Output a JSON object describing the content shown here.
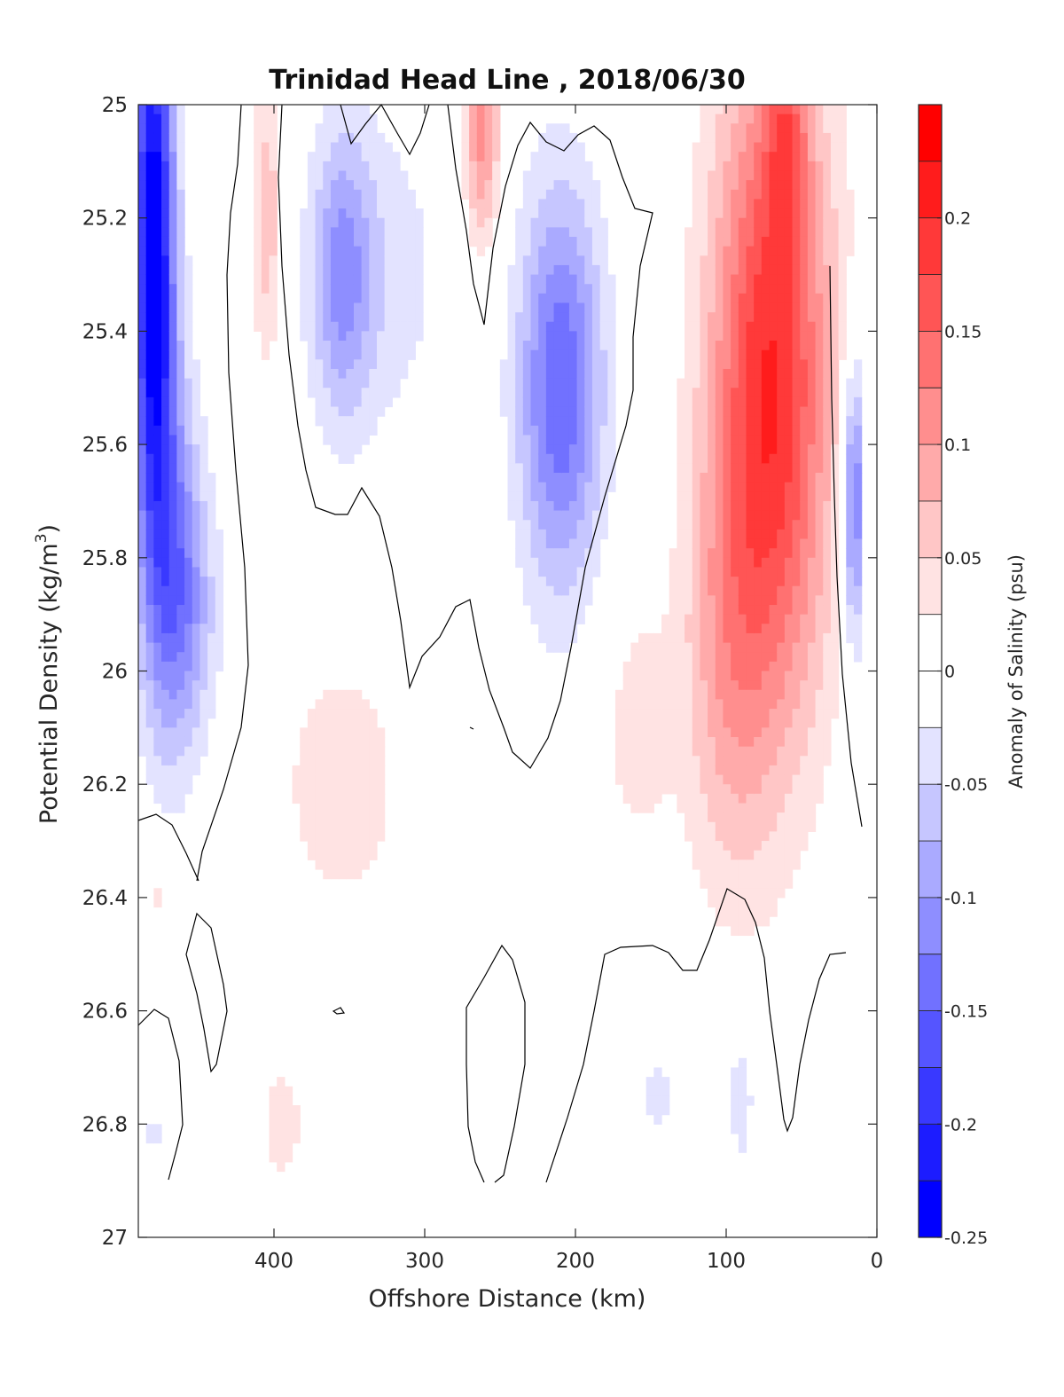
{
  "chart_data": {
    "type": "heatmap",
    "title": "Trinidad Head Line , 2018/06/30",
    "xlabel": "Offshore Distance (km)",
    "ylabel_main": "Potential Density (kg/m",
    "ylabel_sup": "3",
    "ylabel_end": ")",
    "xlim": [
      490,
      0
    ],
    "ylim": [
      25,
      27
    ],
    "y_reversed": true,
    "x_ticks": [
      {
        "value": 400,
        "label": "400"
      },
      {
        "value": 300,
        "label": "300"
      },
      {
        "value": 200,
        "label": "200"
      },
      {
        "value": 100,
        "label": "100"
      },
      {
        "value": 0,
        "label": "0"
      }
    ],
    "y_ticks": [
      {
        "value": 25,
        "label": "25"
      },
      {
        "value": 25.2,
        "label": "25.2"
      },
      {
        "value": 25.4,
        "label": "25.4"
      },
      {
        "value": 25.6,
        "label": "25.6"
      },
      {
        "value": 25.8,
        "label": "25.8"
      },
      {
        "value": 26,
        "label": "26"
      },
      {
        "value": 26.2,
        "label": "26.2"
      },
      {
        "value": 26.4,
        "label": "26.4"
      },
      {
        "value": 26.6,
        "label": "26.6"
      },
      {
        "value": 26.8,
        "label": "26.8"
      },
      {
        "value": 27,
        "label": "27"
      }
    ],
    "grid": false,
    "colorbar": {
      "label": "Anomaly of Salinity (psu)",
      "range": [
        -0.25,
        0.25
      ],
      "level_step": 0.025,
      "low_color": "#0000ff",
      "mid_color": "#ffffff",
      "high_color": "#ff0000",
      "ticks": [
        {
          "value": 0.2,
          "label": "0.2"
        },
        {
          "value": 0.15,
          "label": "0.15"
        },
        {
          "value": 0.1,
          "label": "0.1"
        },
        {
          "value": 0.05,
          "label": "0.05"
        },
        {
          "value": 0,
          "label": "0"
        },
        {
          "value": -0.05,
          "label": "-0.05"
        },
        {
          "value": -0.1,
          "label": "-0.1"
        },
        {
          "value": -0.15,
          "label": "-0.15"
        },
        {
          "value": -0.2,
          "label": "-0.2"
        },
        {
          "value": -0.25,
          "label": "-0.25"
        }
      ]
    },
    "data_extent": {
      "x_max": 490,
      "x_min": 12,
      "y_max": 26.9
    },
    "blobs": [
      {
        "x": 480,
        "y": 25.25,
        "sx": 14,
        "sy": 0.5,
        "v": -0.26
      },
      {
        "x": 468,
        "y": 25.8,
        "sx": 20,
        "sy": 0.35,
        "v": -0.11
      },
      {
        "x": 455,
        "y": 25.9,
        "sx": 22,
        "sy": 0.22,
        "v": -0.05
      },
      {
        "x": 405,
        "y": 25.2,
        "sx": 10,
        "sy": 0.25,
        "v": 0.07
      },
      {
        "x": 355,
        "y": 25.3,
        "sx": 20,
        "sy": 0.25,
        "v": -0.09
      },
      {
        "x": 330,
        "y": 25.3,
        "sx": 45,
        "sy": 0.3,
        "v": -0.04
      },
      {
        "x": 262,
        "y": 25.05,
        "sx": 12,
        "sy": 0.2,
        "v": 0.11
      },
      {
        "x": 210,
        "y": 25.5,
        "sx": 28,
        "sy": 0.35,
        "v": -0.15
      },
      {
        "x": 60,
        "y": 25.05,
        "sx": 14,
        "sy": 0.2,
        "v": 0.08
      },
      {
        "x": 70,
        "y": 25.5,
        "sx": 40,
        "sy": 0.6,
        "v": 0.2
      },
      {
        "x": 100,
        "y": 26.0,
        "sx": 30,
        "sy": 0.4,
        "v": 0.06
      },
      {
        "x": 15,
        "y": 25.7,
        "sx": 9,
        "sy": 0.25,
        "v": -0.14
      },
      {
        "x": 355,
        "y": 26.2,
        "sx": 45,
        "sy": 0.25,
        "v": 0.04
      },
      {
        "x": 160,
        "y": 26.1,
        "sx": 25,
        "sy": 0.25,
        "v": 0.035
      },
      {
        "x": 475,
        "y": 26.4,
        "sx": 8,
        "sy": 0.06,
        "v": 0.035
      },
      {
        "x": 395,
        "y": 26.8,
        "sx": 15,
        "sy": 0.12,
        "v": 0.04
      },
      {
        "x": 145,
        "y": 26.75,
        "sx": 15,
        "sy": 0.08,
        "v": -0.035
      },
      {
        "x": 90,
        "y": 26.75,
        "sx": 10,
        "sy": 0.15,
        "v": -0.04
      },
      {
        "x": 480,
        "y": 26.82,
        "sx": 6,
        "sy": 0.05,
        "v": -0.035
      }
    ]
  }
}
